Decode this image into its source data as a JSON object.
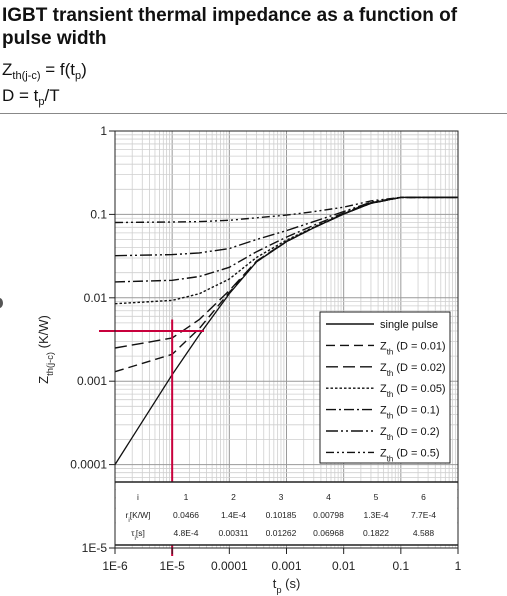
{
  "header": {
    "title": "IGBT transient thermal impedance as a function of pulse width",
    "formula1": {
      "main": "Z",
      "sub": "th(j-c)",
      "rest": " = f(t",
      "sub2": "p",
      "end": ")"
    },
    "formula2": {
      "main": "D = t",
      "sub": "p",
      "rest": "/T"
    }
  },
  "chart_data": {
    "type": "line",
    "x_scale": "log",
    "y_scale": "log",
    "xlim": [
      1e-06,
      1
    ],
    "ylim": [
      1e-05,
      1
    ],
    "x_ticks": [
      "1E-6",
      "1E-5",
      "0.0001",
      "0.001",
      "0.01",
      "0.1",
      "1"
    ],
    "y_ticks": [
      "1E-5",
      "0.0001",
      "0.001",
      "0.01",
      "0.1",
      "1"
    ],
    "xlabel": {
      "main": "t",
      "sub": "p",
      "rest": " (s)"
    },
    "ylabel": {
      "main": "Z",
      "sub": "th(j-c)",
      "rest": " (K/W)"
    },
    "grid": true,
    "legend_position": "lower-right",
    "series": [
      {
        "name": "single pulse",
        "style": "solid",
        "x": [
          1e-06,
          1e-05,
          3e-05,
          0.0001,
          0.0003,
          0.001,
          0.003,
          0.01,
          0.03,
          0.1,
          1
        ],
        "y": [
          0.0001,
          0.0012,
          0.0036,
          0.0112,
          0.027,
          0.047,
          0.069,
          0.101,
          0.136,
          0.16,
          0.16
        ]
      },
      {
        "name": "Z",
        "sub": "th",
        "rest": " (D = 0.01)",
        "style": "dash",
        "x": [
          1e-06,
          1e-05,
          3e-05,
          0.0001,
          0.0003,
          0.001,
          0.003,
          0.01,
          0.03,
          0.1,
          1
        ],
        "y": [
          0.0013,
          0.0021,
          0.0043,
          0.0116,
          0.0272,
          0.0472,
          0.0692,
          0.101,
          0.136,
          0.16,
          0.16
        ]
      },
      {
        "name": "Z",
        "sub": "th",
        "rest": " (D = 0.02)",
        "style": "longdash",
        "x": [
          1e-06,
          1e-05,
          3e-05,
          0.0001,
          0.0003,
          0.001,
          0.003,
          0.01,
          0.03,
          0.1,
          1
        ],
        "y": [
          0.0025,
          0.0033,
          0.0055,
          0.0122,
          0.0276,
          0.0475,
          0.0694,
          0.101,
          0.136,
          0.16,
          0.16
        ]
      },
      {
        "name": "Z",
        "sub": "th",
        "rest": " (D = 0.05)",
        "style": "dot",
        "x": [
          1e-06,
          1e-05,
          3e-05,
          0.0001,
          0.0003,
          0.001,
          0.003,
          0.01,
          0.03,
          0.1,
          1
        ],
        "y": [
          0.0085,
          0.0093,
          0.0112,
          0.0168,
          0.0305,
          0.0492,
          0.0705,
          0.102,
          0.137,
          0.16,
          0.16
        ]
      },
      {
        "name": "Z",
        "sub": "th",
        "rest": " (D = 0.1)",
        "style": "dashdot",
        "x": [
          1e-06,
          1e-05,
          3e-05,
          0.0001,
          0.0003,
          0.001,
          0.003,
          0.01,
          0.03,
          0.1,
          1
        ],
        "y": [
          0.0155,
          0.0162,
          0.018,
          0.0232,
          0.0357,
          0.0535,
          0.074,
          0.104,
          0.138,
          0.16,
          0.16
        ]
      },
      {
        "name": "Z",
        "sub": "th",
        "rest": " (D = 0.2)",
        "style": "dashdotdot",
        "x": [
          1e-06,
          1e-05,
          3e-05,
          0.0001,
          0.0003,
          0.001,
          0.003,
          0.01,
          0.03,
          0.1,
          1
        ],
        "y": [
          0.032,
          0.033,
          0.0345,
          0.039,
          0.05,
          0.064,
          0.082,
          0.108,
          0.14,
          0.16,
          0.16
        ]
      },
      {
        "name": "Z",
        "sub": "th",
        "rest": " (D = 0.5)",
        "style": "dashdotdot2",
        "x": [
          1e-06,
          1e-05,
          3e-05,
          0.0001,
          0.0003,
          0.001,
          0.003,
          0.01,
          0.03,
          0.1,
          1
        ],
        "y": [
          0.08,
          0.081,
          0.082,
          0.085,
          0.091,
          0.098,
          0.108,
          0.122,
          0.145,
          0.16,
          0.16
        ]
      }
    ],
    "markers": {
      "color": "#c8003c",
      "vline_x": 1e-05,
      "vline_y_top": 0.0055,
      "hline_y": 0.004,
      "hline_x_end": 3.6e-05
    },
    "table": {
      "index_label": "i",
      "r_label": "r",
      "r_sub": "i",
      "r_unit": "[K/W]",
      "tau_label": "τ",
      "tau_sub": "i",
      "tau_unit": "[s]",
      "index": [
        "1",
        "2",
        "3",
        "4",
        "5",
        "6"
      ],
      "r": [
        "0.0466",
        "1.4E-4",
        "0.10185",
        "0.00798",
        "1.3E-4",
        "7.7E-4"
      ],
      "tau": [
        "4.8E-4",
        "0.00311",
        "0.01262",
        "0.06968",
        "0.1822",
        "4.588"
      ]
    }
  }
}
